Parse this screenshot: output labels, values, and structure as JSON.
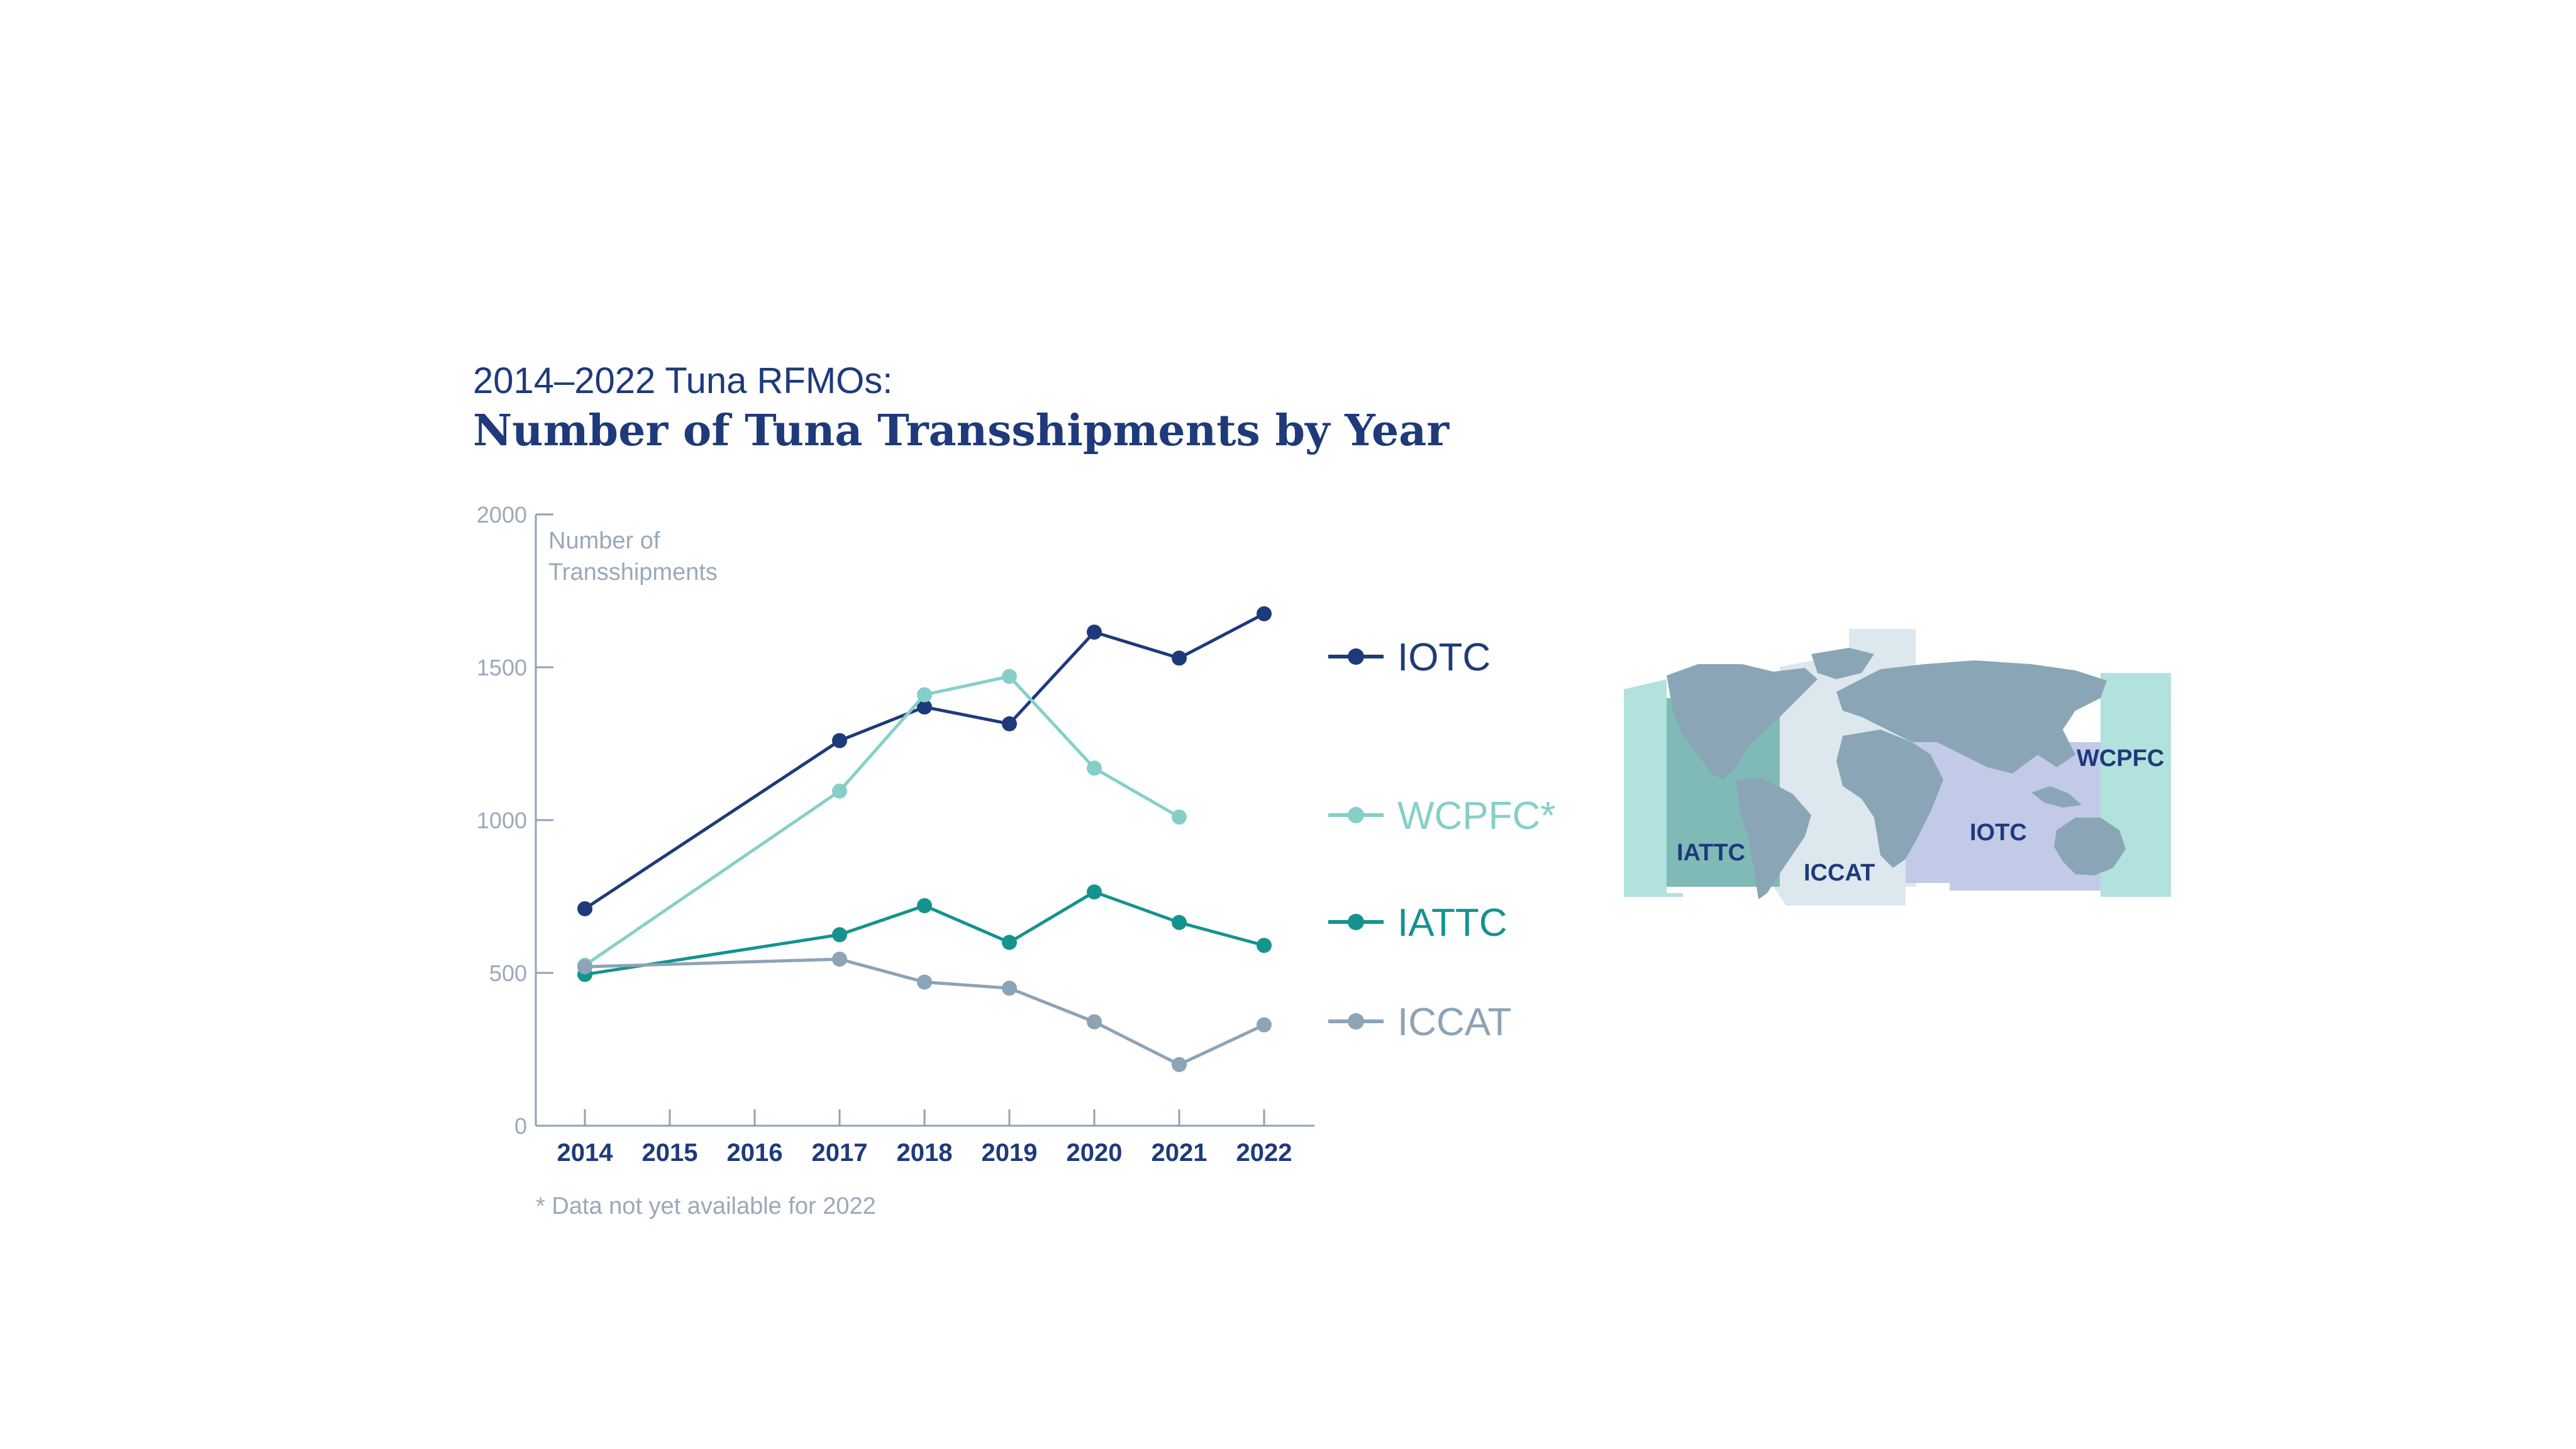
{
  "chart_data": {
    "type": "line",
    "subtitle": "2014–2022 Tuna RFMOs:",
    "title": "Number of Tuna Transshipments by Year",
    "ylabel_lines": [
      "Number of",
      "Transshipments"
    ],
    "ylim": [
      0,
      2000
    ],
    "yticks": [
      0,
      500,
      1000,
      1500,
      2000
    ],
    "categories": [
      2014,
      2015,
      2016,
      2017,
      2018,
      2019,
      2020,
      2021,
      2022
    ],
    "series": [
      {
        "name": "IOTC",
        "color": "#1e3a7b",
        "x": [
          2014,
          2017,
          2018,
          2019,
          2020,
          2021,
          2022
        ],
        "values": [
          710,
          1260,
          1370,
          1315,
          1615,
          1530,
          1675
        ]
      },
      {
        "name": "WCPFC*",
        "color": "#86cfc9",
        "x": [
          2014,
          2017,
          2018,
          2019,
          2020,
          2021
        ],
        "values": [
          525,
          1095,
          1410,
          1470,
          1170,
          1010
        ]
      },
      {
        "name": "IATTC",
        "color": "#14938f",
        "x": [
          2014,
          2017,
          2018,
          2019,
          2020,
          2021,
          2022
        ],
        "values": [
          495,
          625,
          720,
          600,
          765,
          665,
          590
        ]
      },
      {
        "name": "ICCAT",
        "color": "#8da3b6",
        "x": [
          2014,
          2017,
          2018,
          2019,
          2020,
          2021,
          2022
        ],
        "values": [
          520,
          545,
          470,
          450,
          340,
          200,
          330
        ]
      }
    ],
    "grid": false,
    "legend": "right",
    "footnote": "* Data not yet available for 2022"
  },
  "map": {
    "labels": {
      "iattc": "IATTC",
      "iccat": "ICCAT",
      "iotc": "IOTC",
      "wcpfc": "WCPFC"
    },
    "colors": {
      "iattc": "#b2e2dd",
      "iattc_dark": "#7fbab6",
      "iccat": "#dde7ee",
      "iotc": "#c2cae8",
      "wcpfc": "#b2e2dd",
      "land": "#8aa6b6"
    }
  }
}
